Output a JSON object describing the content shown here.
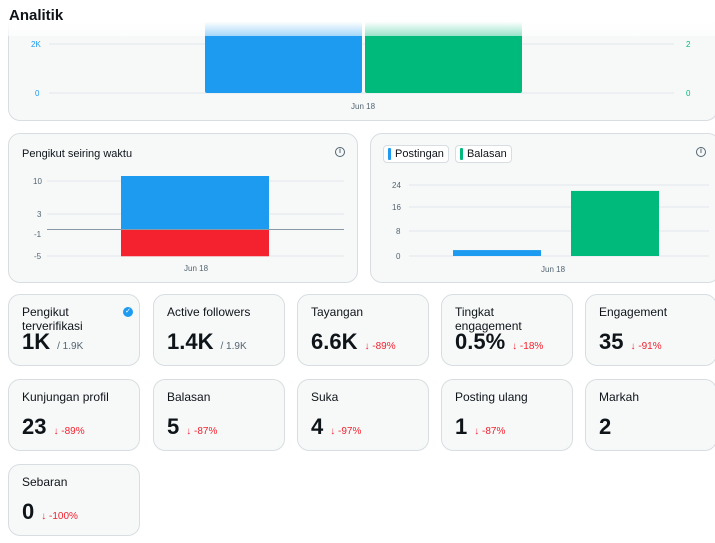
{
  "page": {
    "title": "Analitik"
  },
  "colors": {
    "blue": "#1d9bf0",
    "green": "#00ba7c",
    "red": "#f4212e",
    "grey": "#536471"
  },
  "chart_data": [
    {
      "type": "bar",
      "categories": [
        "Jun 18"
      ],
      "series": [
        {
          "values": [
            2000
          ],
          "color": "#1d9bf0"
        },
        {
          "values": [
            2
          ],
          "color": "#00ba7c"
        }
      ],
      "y_left_ticks": [
        "2K",
        "0"
      ],
      "y_right_ticks": [
        "2",
        "0"
      ],
      "x_tick": "Jun 18"
    },
    {
      "type": "bar",
      "title": "Pengikut seiring waktu",
      "categories": [
        "Jun 18"
      ],
      "series": [
        {
          "values": [
            10
          ],
          "color": "#1d9bf0"
        },
        {
          "values": [
            -5
          ],
          "color": "#f4212e"
        }
      ],
      "y_ticks": [
        "10",
        "3",
        "-1",
        "-5"
      ],
      "ylim": [
        -5,
        10
      ],
      "x_tick": "Jun 18"
    },
    {
      "type": "bar",
      "categories": [
        "Jun 18"
      ],
      "series": [
        {
          "name": "Postingan",
          "values": [
            2
          ],
          "color": "#1d9bf0"
        },
        {
          "name": "Balasan",
          "values": [
            22
          ],
          "color": "#00ba7c"
        }
      ],
      "y_ticks": [
        "24",
        "16",
        "8",
        "0"
      ],
      "ylim": [
        0,
        24
      ],
      "x_tick": "Jun 18"
    }
  ],
  "legend": {
    "postingan": "Postingan",
    "balasan": "Balasan"
  },
  "stats": [
    {
      "label": "Pengikut terverifikasi",
      "value": "1K",
      "sub": "/ 1.9K",
      "delta": ""
    },
    {
      "label": "Active followers",
      "value": "1.4K",
      "sub": "/ 1.9K",
      "delta": ""
    },
    {
      "label": "Tayangan",
      "value": "6.6K",
      "sub": "",
      "delta": "↓ -89%"
    },
    {
      "label": "Tingkat engagement",
      "value": "0.5%",
      "sub": "",
      "delta": "↓ -18%"
    },
    {
      "label": "Engagement",
      "value": "35",
      "sub": "",
      "delta": "↓ -91%"
    },
    {
      "label": "Kunjungan profil",
      "value": "23",
      "sub": "",
      "delta": "↓ -89%"
    },
    {
      "label": "Balasan",
      "value": "5",
      "sub": "",
      "delta": "↓ -87%"
    },
    {
      "label": "Suka",
      "value": "4",
      "sub": "",
      "delta": "↓ -97%"
    },
    {
      "label": "Posting ulang",
      "value": "1",
      "sub": "",
      "delta": "↓ -87%"
    },
    {
      "label": "Markah",
      "value": "2",
      "sub": "",
      "delta": ""
    },
    {
      "label": "Sebaran",
      "value": "0",
      "sub": "",
      "delta": "↓ -100%"
    }
  ]
}
